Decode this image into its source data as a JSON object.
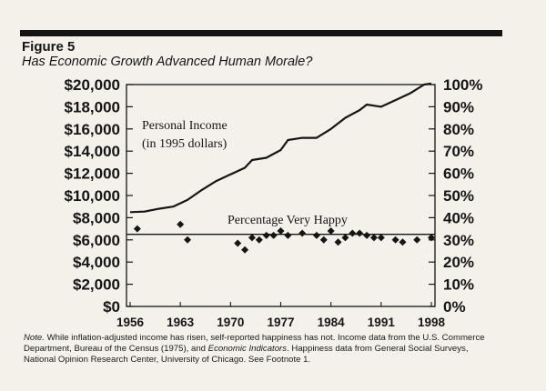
{
  "figure": {
    "label": "Figure 5",
    "subtitle": "Has Economic Growth Advanced Human Morale?"
  },
  "chart_data": {
    "type": "line",
    "x_ticks": [
      "1956",
      "1963",
      "1970",
      "1977",
      "1984",
      "1991",
      "1998"
    ],
    "xlim": [
      1956,
      1998
    ],
    "y_left": {
      "ticks": [
        "$20,000",
        "$18,000",
        "$16,000",
        "$14,000",
        "$12,000",
        "$10,000",
        "$8,000",
        "$6,000",
        "$4,000",
        "$2,000",
        "$0"
      ],
      "ylim": [
        0,
        20000
      ]
    },
    "y_right": {
      "ticks": [
        "100%",
        "90%",
        "80%",
        "70%",
        "60%",
        "50%",
        "40%",
        "30%",
        "20%",
        "10%",
        "0%"
      ],
      "ylim": [
        0,
        100
      ]
    },
    "series": [
      {
        "name_line1": "Personal Income",
        "name_line2": "(in 1995 dollars)",
        "axis": "left",
        "style": "line",
        "points": [
          [
            1956,
            8500
          ],
          [
            1958,
            8550
          ],
          [
            1960,
            8800
          ],
          [
            1962,
            9000
          ],
          [
            1964,
            9600
          ],
          [
            1966,
            10500
          ],
          [
            1968,
            11300
          ],
          [
            1970,
            11900
          ],
          [
            1972,
            12500
          ],
          [
            1973,
            13200
          ],
          [
            1975,
            13400
          ],
          [
            1977,
            14100
          ],
          [
            1978,
            15000
          ],
          [
            1980,
            15200
          ],
          [
            1982,
            15200
          ],
          [
            1984,
            16000
          ],
          [
            1986,
            17000
          ],
          [
            1988,
            17700
          ],
          [
            1989,
            18200
          ],
          [
            1991,
            18000
          ],
          [
            1993,
            18600
          ],
          [
            1995,
            19200
          ],
          [
            1997,
            20000
          ],
          [
            1998,
            20100
          ]
        ]
      },
      {
        "name": "Percentage Very Happy",
        "axis": "right",
        "style": "markers",
        "points": [
          [
            1957,
            35
          ],
          [
            1963,
            37
          ],
          [
            1964,
            30
          ],
          [
            1971,
            28.5
          ],
          [
            1972,
            25.5
          ],
          [
            1973,
            31
          ],
          [
            1974,
            30
          ],
          [
            1975,
            32
          ],
          [
            1976,
            32
          ],
          [
            1977,
            34
          ],
          [
            1978,
            32
          ],
          [
            1980,
            33
          ],
          [
            1982,
            32
          ],
          [
            1983,
            30
          ],
          [
            1984,
            34
          ],
          [
            1985,
            29
          ],
          [
            1986,
            31
          ],
          [
            1987,
            33
          ],
          [
            1988,
            33
          ],
          [
            1989,
            32
          ],
          [
            1990,
            31
          ],
          [
            1991,
            31
          ],
          [
            1993,
            30
          ],
          [
            1994,
            29
          ],
          [
            1996,
            30
          ],
          [
            1998,
            31
          ]
        ]
      }
    ],
    "reference_line": {
      "axis": "right",
      "value": 32.5
    },
    "grid": false
  },
  "note": {
    "lead": "Note.",
    "part1": "While inflation-adjusted income has risen, self-reported happiness has not. Income data from the U.S. Commerce Department, Bureau of the Census (1975), and",
    "source_title": "Economic Indicators",
    "part2": ". Happiness data from General Social Surveys, National Opinion Research Center, University of Chicago. See Footnote 1."
  }
}
